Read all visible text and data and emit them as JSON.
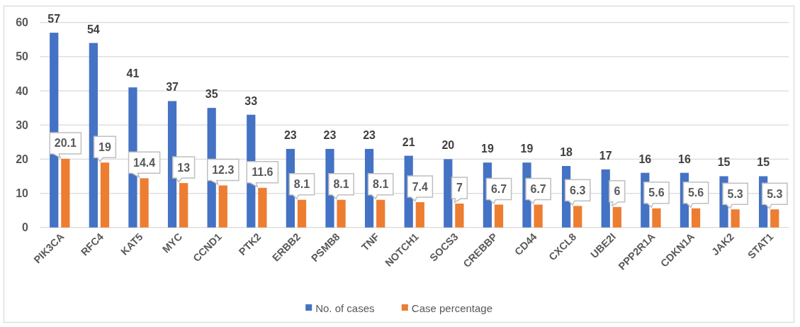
{
  "chart_data": {
    "type": "bar",
    "categories": [
      "PIK3CA",
      "RFC4",
      "KAT5",
      "MYC",
      "CCND1",
      "PTK2",
      "ERBB2",
      "PSMB8",
      "TNF",
      "NOTCH1",
      "SOCS3",
      "CREBBP",
      "CD44",
      "CXCL8",
      "UBE2I",
      "PPP2R1A",
      "CDKN1A",
      "JAK2",
      "STAT1"
    ],
    "series": [
      {
        "name": "No. of cases",
        "color": "#4472c4",
        "values": [
          57,
          54,
          41,
          37,
          35,
          33,
          23,
          23,
          23,
          21,
          20,
          19,
          19,
          18,
          17,
          16,
          16,
          15,
          15
        ]
      },
      {
        "name": "Case percentage",
        "color": "#ed7d31",
        "values": [
          20.1,
          19,
          14.4,
          13,
          12.3,
          11.6,
          8.1,
          8.1,
          8.1,
          7.4,
          7,
          6.7,
          6.7,
          6.3,
          6,
          5.6,
          5.6,
          5.3,
          5.3
        ]
      }
    ],
    "ylim": [
      0,
      60
    ],
    "yticks": [
      0,
      10,
      20,
      30,
      40,
      50,
      60
    ],
    "grid": "y",
    "legend": "bottom",
    "data_labels": true
  }
}
